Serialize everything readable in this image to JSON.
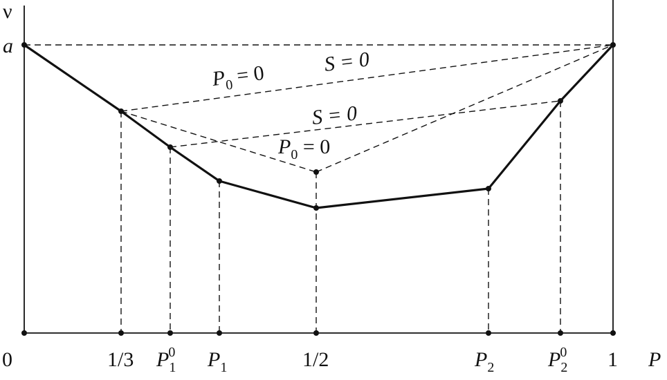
{
  "axes": {
    "y_label": "ν",
    "y_tick_a": "a",
    "x_label": "P"
  },
  "x_ticks": [
    {
      "base": "0",
      "sub": "",
      "sup": "",
      "italic": false
    },
    {
      "base": "1/3",
      "sub": "",
      "sup": "",
      "italic": false
    },
    {
      "base": "P",
      "sub": "1",
      "sup": "0",
      "italic": true
    },
    {
      "base": "P",
      "sub": "1",
      "sup": "",
      "italic": true
    },
    {
      "base": "1/2",
      "sub": "",
      "sup": "",
      "italic": false
    },
    {
      "base": "P",
      "sub": "2",
      "sup": "",
      "italic": true
    },
    {
      "base": "P",
      "sub": "2",
      "sup": "0",
      "italic": true
    },
    {
      "base": "1",
      "sub": "",
      "sup": "",
      "italic": false
    }
  ],
  "line_labels": {
    "p0_upper": {
      "base": "P",
      "sub": "0",
      "rest": " = 0"
    },
    "s_upper": {
      "text": "S = 0"
    },
    "s_lower": {
      "text": "S = 0"
    },
    "p0_lower": {
      "base": "P",
      "sub": "0",
      "rest": " = 0"
    }
  }
}
